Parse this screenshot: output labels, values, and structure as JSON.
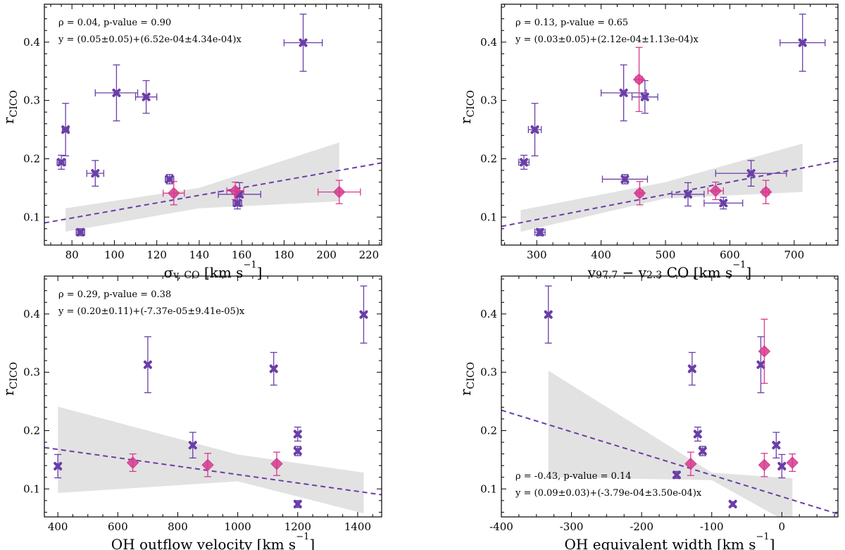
{
  "colors": {
    "purple": "#6a3ea8",
    "pink": "#d63a8e",
    "band": "#cfcfcf"
  },
  "chart_data": [
    {
      "type": "scatter",
      "xlabel_main": "σ",
      "xlabel_sub": "v, CO",
      "xlabel_unit": " [km s",
      "xlabel_exp": "−1",
      "xlabel_end": "]",
      "ylabel_main": "r",
      "ylabel_sub": "CICO",
      "xlim": [
        67,
        226
      ],
      "ylim": [
        0.052,
        0.465
      ],
      "xticks": [
        80,
        100,
        120,
        140,
        160,
        180,
        200,
        220
      ],
      "yticks": [
        0.1,
        0.2,
        0.3,
        0.4
      ],
      "xtick_labels": [
        "80",
        "100",
        "120",
        "140",
        "160",
        "180",
        "200",
        "220"
      ],
      "ytick_labels": [
        "0.1",
        "0.2",
        "0.3",
        "0.4"
      ],
      "annotation": [
        "ρ = 0.04, p-value = 0.90",
        "y = (0.05±0.05)+(6.52e-04±4.34e-04)x"
      ],
      "annotation_pos": "top-left",
      "fit": {
        "x": [
          67,
          226
        ],
        "y": [
          0.09,
          0.193
        ]
      },
      "band": {
        "x": [
          77,
          140,
          206
        ],
        "upper": [
          0.115,
          0.15,
          0.228
        ],
        "lower": [
          0.075,
          0.115,
          0.127
        ]
      },
      "points": [
        {
          "series": "purple",
          "marker": "x",
          "x": 189,
          "y": 0.399,
          "xerr": 9,
          "yerr": 0.049
        },
        {
          "series": "purple",
          "marker": "x",
          "x": 101,
          "y": 0.313,
          "xerr": 10,
          "yerr": 0.048
        },
        {
          "series": "purple",
          "marker": "x",
          "x": 115,
          "y": 0.306,
          "xerr": 5,
          "yerr": 0.028
        },
        {
          "series": "purple",
          "marker": "x",
          "x": 77,
          "y": 0.25,
          "xerr": 1.5,
          "yerr": 0.045
        },
        {
          "series": "purple",
          "marker": "x",
          "x": 75,
          "y": 0.194,
          "xerr": 2,
          "yerr": 0.012
        },
        {
          "series": "purple",
          "marker": "x",
          "x": 91,
          "y": 0.175,
          "xerr": 4,
          "yerr": 0.022
        },
        {
          "series": "purple",
          "marker": "x",
          "x": 126,
          "y": 0.165,
          "xerr": 2,
          "yerr": 0.008
        },
        {
          "series": "purple",
          "marker": "x",
          "x": 159,
          "y": 0.139,
          "xerr": 10,
          "yerr": 0.02
        },
        {
          "series": "purple",
          "marker": "x",
          "x": 158,
          "y": 0.124,
          "xerr": 2,
          "yerr": 0.01
        },
        {
          "series": "purple",
          "marker": "x",
          "x": 84,
          "y": 0.074,
          "xerr": 2,
          "yerr": 0.006
        },
        {
          "series": "pink",
          "marker": "diamond",
          "x": 128,
          "y": 0.141,
          "xerr": 5,
          "yerr": 0.02
        },
        {
          "series": "pink",
          "marker": "diamond",
          "x": 157,
          "y": 0.145,
          "xerr": 4,
          "yerr": 0.015
        },
        {
          "series": "pink",
          "marker": "diamond",
          "x": 206,
          "y": 0.143,
          "xerr": 10,
          "yerr": 0.02
        }
      ]
    },
    {
      "type": "scatter",
      "xlabel_main": "v",
      "xlabel_sub": "97.7",
      "xlabel_mid": " − v",
      "xlabel_sub2": "2.3",
      "xlabel_unit": " CO [km s",
      "xlabel_exp": "−1",
      "xlabel_end": "]",
      "ylabel_main": "r",
      "ylabel_sub": "CICO",
      "xlim": [
        245,
        768
      ],
      "ylim": [
        0.052,
        0.465
      ],
      "xticks": [
        300,
        400,
        500,
        600,
        700
      ],
      "yticks": [
        0.1,
        0.2,
        0.3,
        0.4
      ],
      "xtick_labels": [
        "300",
        "400",
        "500",
        "600",
        "700"
      ],
      "ytick_labels": [
        "0.1",
        "0.2",
        "0.3",
        "0.4"
      ],
      "annotation": [
        "ρ = 0.13, p-value = 0.65",
        "y = (0.03±0.05)+(2.12e-04±1.13e-04)x"
      ],
      "annotation_pos": "top-left",
      "fit": {
        "x": [
          245,
          768
        ],
        "y": [
          0.084,
          0.196
        ]
      },
      "band": {
        "x": [
          275,
          500,
          713
        ],
        "upper": [
          0.112,
          0.16,
          0.226
        ],
        "lower": [
          0.075,
          0.132,
          0.143
        ]
      },
      "points": [
        {
          "series": "purple",
          "marker": "x",
          "x": 713,
          "y": 0.399,
          "xerr": 35,
          "yerr": 0.049
        },
        {
          "series": "purple",
          "marker": "x",
          "x": 435,
          "y": 0.313,
          "xerr": 35,
          "yerr": 0.048
        },
        {
          "series": "purple",
          "marker": "x",
          "x": 468,
          "y": 0.306,
          "xerr": 20,
          "yerr": 0.028
        },
        {
          "series": "purple",
          "marker": "x",
          "x": 297,
          "y": 0.25,
          "xerr": 10,
          "yerr": 0.045
        },
        {
          "series": "purple",
          "marker": "x",
          "x": 280,
          "y": 0.194,
          "xerr": 8,
          "yerr": 0.012
        },
        {
          "series": "purple",
          "marker": "x",
          "x": 633,
          "y": 0.175,
          "xerr": 55,
          "yerr": 0.022
        },
        {
          "series": "purple",
          "marker": "x",
          "x": 437,
          "y": 0.165,
          "xerr": 35,
          "yerr": 0.008
        },
        {
          "series": "purple",
          "marker": "x",
          "x": 535,
          "y": 0.139,
          "xerr": 25,
          "yerr": 0.02
        },
        {
          "series": "purple",
          "marker": "x",
          "x": 590,
          "y": 0.124,
          "xerr": 30,
          "yerr": 0.01
        },
        {
          "series": "purple",
          "marker": "x",
          "x": 305,
          "y": 0.074,
          "xerr": 8,
          "yerr": 0.006
        },
        {
          "series": "pink",
          "marker": "diamond",
          "x": 459,
          "y": 0.336,
          "xerr": 5,
          "yerr": 0.055
        },
        {
          "series": "pink",
          "marker": "diamond",
          "x": 460,
          "y": 0.141,
          "xerr": 5,
          "yerr": 0.02
        },
        {
          "series": "pink",
          "marker": "diamond",
          "x": 578,
          "y": 0.145,
          "xerr": 12,
          "yerr": 0.015
        },
        {
          "series": "pink",
          "marker": "diamond",
          "x": 656,
          "y": 0.143,
          "xerr": 5,
          "yerr": 0.02
        }
      ]
    },
    {
      "type": "scatter",
      "xlabel_main": "OH outflow velocity",
      "xlabel_unit": " [km s",
      "xlabel_exp": "−1",
      "xlabel_end": "]",
      "ylabel_main": "r",
      "ylabel_sub": "CICO",
      "xlim": [
        355,
        1480
      ],
      "ylim": [
        0.052,
        0.465
      ],
      "xticks": [
        400,
        600,
        800,
        1000,
        1200,
        1400
      ],
      "yticks": [
        0.1,
        0.2,
        0.3,
        0.4
      ],
      "xtick_labels": [
        "400",
        "600",
        "800",
        "1000",
        "1200",
        "1400"
      ],
      "ytick_labels": [
        "0.1",
        "0.2",
        "0.3",
        "0.4"
      ],
      "annotation": [
        "ρ = 0.29, p-value = 0.38",
        "y = (0.20±0.11)+(-7.37e-05±9.41e-05)x"
      ],
      "annotation_pos": "top-left",
      "fit": {
        "x": [
          355,
          1480
        ],
        "y": [
          0.171,
          0.09
        ]
      },
      "band": {
        "x": [
          400,
          1000,
          1420
        ],
        "upper": [
          0.241,
          0.159,
          0.128
        ],
        "lower": [
          0.093,
          0.113,
          0.058
        ]
      },
      "points": [
        {
          "series": "purple",
          "marker": "x",
          "x": 1420,
          "y": 0.399,
          "xerr": 0,
          "yerr": 0.049
        },
        {
          "series": "purple",
          "marker": "x",
          "x": 700,
          "y": 0.313,
          "xerr": 0,
          "yerr": 0.048
        },
        {
          "series": "purple",
          "marker": "x",
          "x": 1120,
          "y": 0.306,
          "xerr": 0,
          "yerr": 0.028
        },
        {
          "series": "purple",
          "marker": "x",
          "x": 1200,
          "y": 0.194,
          "xerr": 0,
          "yerr": 0.012
        },
        {
          "series": "purple",
          "marker": "x",
          "x": 850,
          "y": 0.175,
          "xerr": 0,
          "yerr": 0.022
        },
        {
          "series": "purple",
          "marker": "x",
          "x": 1200,
          "y": 0.165,
          "xerr": 0,
          "yerr": 0.008
        },
        {
          "series": "purple",
          "marker": "x",
          "x": 400,
          "y": 0.139,
          "xerr": 0,
          "yerr": 0.02
        },
        {
          "series": "purple",
          "marker": "x",
          "x": 1200,
          "y": 0.074,
          "xerr": 0,
          "yerr": 0.006
        },
        {
          "series": "pink",
          "marker": "diamond",
          "x": 650,
          "y": 0.145,
          "xerr": 0,
          "yerr": 0.015
        },
        {
          "series": "pink",
          "marker": "diamond",
          "x": 900,
          "y": 0.141,
          "xerr": 0,
          "yerr": 0.02
        },
        {
          "series": "pink",
          "marker": "diamond",
          "x": 1130,
          "y": 0.143,
          "xerr": 0,
          "yerr": 0.02
        }
      ]
    },
    {
      "type": "scatter",
      "xlabel_main": "OH equivalent width",
      "xlabel_unit": " [km s",
      "xlabel_exp": "−1",
      "xlabel_end": "]",
      "ylabel_main": "r",
      "ylabel_sub": "CICO",
      "xlim": [
        -400,
        80
      ],
      "ylim": [
        0.052,
        0.465
      ],
      "xticks": [
        -400,
        -300,
        -200,
        -100,
        0
      ],
      "yticks": [
        0.1,
        0.2,
        0.3,
        0.4
      ],
      "xtick_labels": [
        "-400",
        "-300",
        "-200",
        "-100",
        "0"
      ],
      "ytick_labels": [
        "0.1",
        "0.2",
        "0.3",
        "0.4"
      ],
      "annotation": [
        "ρ = -0.43, p-value = 0.14",
        "y = (0.09±0.03)+(-3.79e-04±3.50e-04)x"
      ],
      "annotation_pos": "bottom-left",
      "fit": {
        "x": [
          -400,
          80
        ],
        "y": [
          0.235,
          0.057
        ]
      },
      "band": {
        "x": [
          -333,
          -100,
          15
        ],
        "upper": [
          0.303,
          0.128,
          0.118
        ],
        "lower": [
          0.12,
          0.115,
          0.038
        ]
      },
      "points": [
        {
          "series": "purple",
          "marker": "x",
          "x": -333,
          "y": 0.399,
          "xerr": 0,
          "yerr": 0.049
        },
        {
          "series": "purple",
          "marker": "x",
          "x": -128,
          "y": 0.306,
          "xerr": 0,
          "yerr": 0.028
        },
        {
          "series": "purple",
          "marker": "x",
          "x": -30,
          "y": 0.313,
          "xerr": 0,
          "yerr": 0.048
        },
        {
          "series": "purple",
          "marker": "x",
          "x": -120,
          "y": 0.194,
          "xerr": 0,
          "yerr": 0.012
        },
        {
          "series": "purple",
          "marker": "x",
          "x": -113,
          "y": 0.165,
          "xerr": 0,
          "yerr": 0.008
        },
        {
          "series": "purple",
          "marker": "x",
          "x": -8,
          "y": 0.175,
          "xerr": 0,
          "yerr": 0.022
        },
        {
          "series": "purple",
          "marker": "x",
          "x": 0,
          "y": 0.139,
          "xerr": 0,
          "yerr": 0.02
        },
        {
          "series": "purple",
          "marker": "x",
          "x": -150,
          "y": 0.124,
          "xerr": 0,
          "yerr": 0.006
        },
        {
          "series": "purple",
          "marker": "x",
          "x": -70,
          "y": 0.074,
          "xerr": 0,
          "yerr": 0.004
        },
        {
          "series": "pink",
          "marker": "diamond",
          "x": -25,
          "y": 0.336,
          "xerr": 0,
          "yerr": 0.055
        },
        {
          "series": "pink",
          "marker": "diamond",
          "x": -130,
          "y": 0.143,
          "xerr": 0,
          "yerr": 0.02
        },
        {
          "series": "pink",
          "marker": "diamond",
          "x": -25,
          "y": 0.141,
          "xerr": 0,
          "yerr": 0.02
        },
        {
          "series": "pink",
          "marker": "diamond",
          "x": 15,
          "y": 0.145,
          "xerr": 0,
          "yerr": 0.015
        }
      ]
    }
  ]
}
